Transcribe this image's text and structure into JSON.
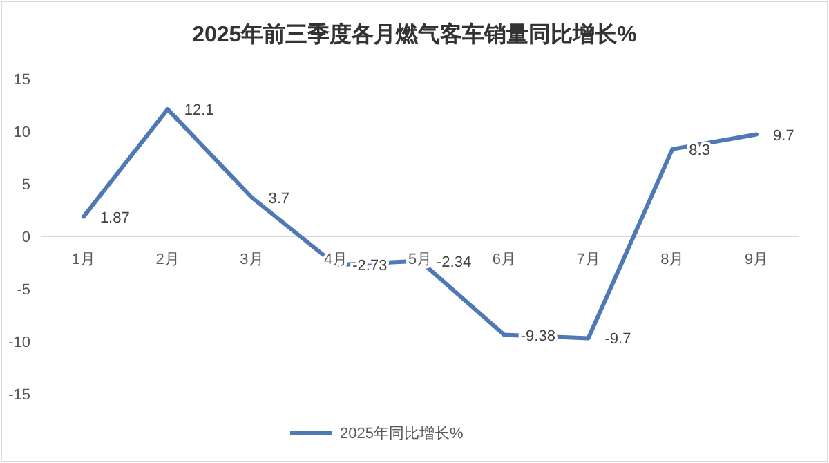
{
  "chart_data": {
    "type": "line",
    "title": "2025年前三季度各月燃气客车销量同比增长%",
    "categories": [
      "1月",
      "2月",
      "3月",
      "4月",
      "5月",
      "6月",
      "7月",
      "8月",
      "9月"
    ],
    "series": [
      {
        "name": "2025年同比增长%",
        "color": "#4e79b4",
        "values": [
          1.87,
          12.1,
          3.7,
          -2.73,
          -2.34,
          -9.38,
          -9.7,
          8.3,
          9.7
        ]
      }
    ],
    "ylim": [
      -15,
      15
    ],
    "yticks": [
      -15,
      -10,
      -5,
      0,
      5,
      10,
      15
    ],
    "data_labels": true,
    "legend": "bottom",
    "grid": false,
    "marker": "none",
    "line_style": "solid"
  }
}
